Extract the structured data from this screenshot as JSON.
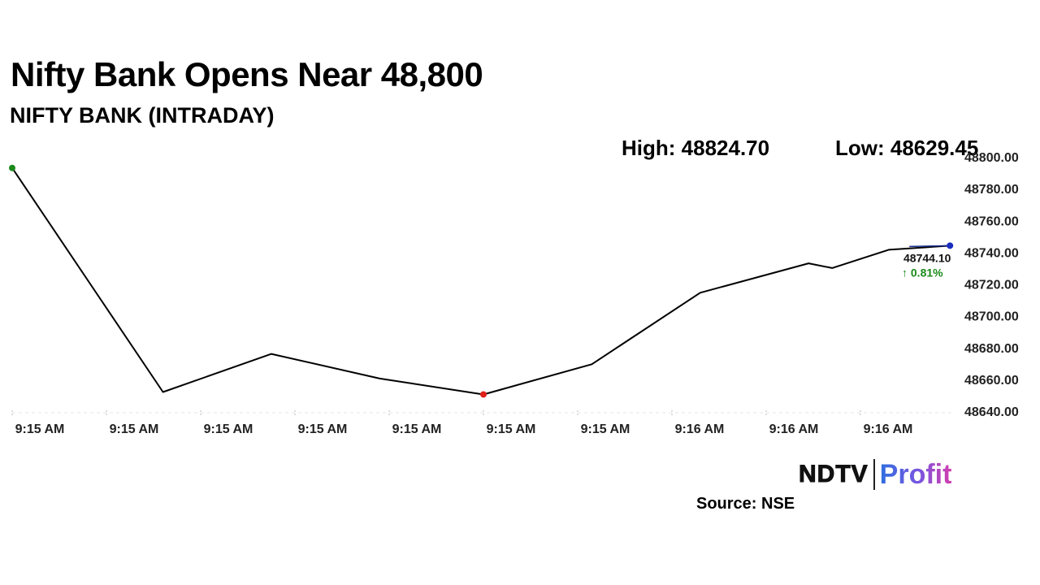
{
  "title": "Nifty Bank Opens Near 48,800",
  "subtitle": "NIFTY BANK (INTRADAY)",
  "stats": {
    "high": "High: 48824.70",
    "low": "Low: 48629.45"
  },
  "last": {
    "price": "48744.10",
    "change": "↑ 0.81%"
  },
  "source": "Source: NSE",
  "logo": {
    "part1": "NDTV",
    "part2": "Profit"
  },
  "colors": {
    "line": "#000000",
    "start_marker": "#1a8a1a",
    "low_marker": "#e0201a",
    "end_marker": "#1a2dbf",
    "change_positive": "#1a8a1a"
  },
  "chart_data": {
    "type": "line",
    "title": "NIFTY BANK (INTRADAY)",
    "xlabel": "",
    "ylabel": "",
    "x_ticks": [
      "9:15 AM",
      "9:15 AM",
      "9:15 AM",
      "9:15 AM",
      "9:15 AM",
      "9:15 AM",
      "9:15 AM",
      "9:16 AM",
      "9:16 AM",
      "9:16 AM"
    ],
    "y_ticks": [
      "48640.00",
      "48660.00",
      "48680.00",
      "48700.00",
      "48720.00",
      "48740.00",
      "48760.00",
      "48780.00",
      "48800.00"
    ],
    "ylim": [
      48640,
      48800
    ],
    "grid": false,
    "series": [
      {
        "x_index": [
          0,
          1.6,
          2.75,
          3.9,
          5.0,
          6.15,
          7.3,
          8.45,
          8.7,
          9.3,
          9.95
        ],
        "values": [
          48793,
          48652,
          48676,
          48660.5,
          48650.5,
          48669.5,
          48714.5,
          48733,
          48730,
          48741.5,
          48744.1
        ]
      }
    ],
    "markers": [
      {
        "point": 0,
        "label": "start"
      },
      {
        "point": 4,
        "label": "low"
      },
      {
        "point": 10,
        "label": "last"
      }
    ]
  }
}
